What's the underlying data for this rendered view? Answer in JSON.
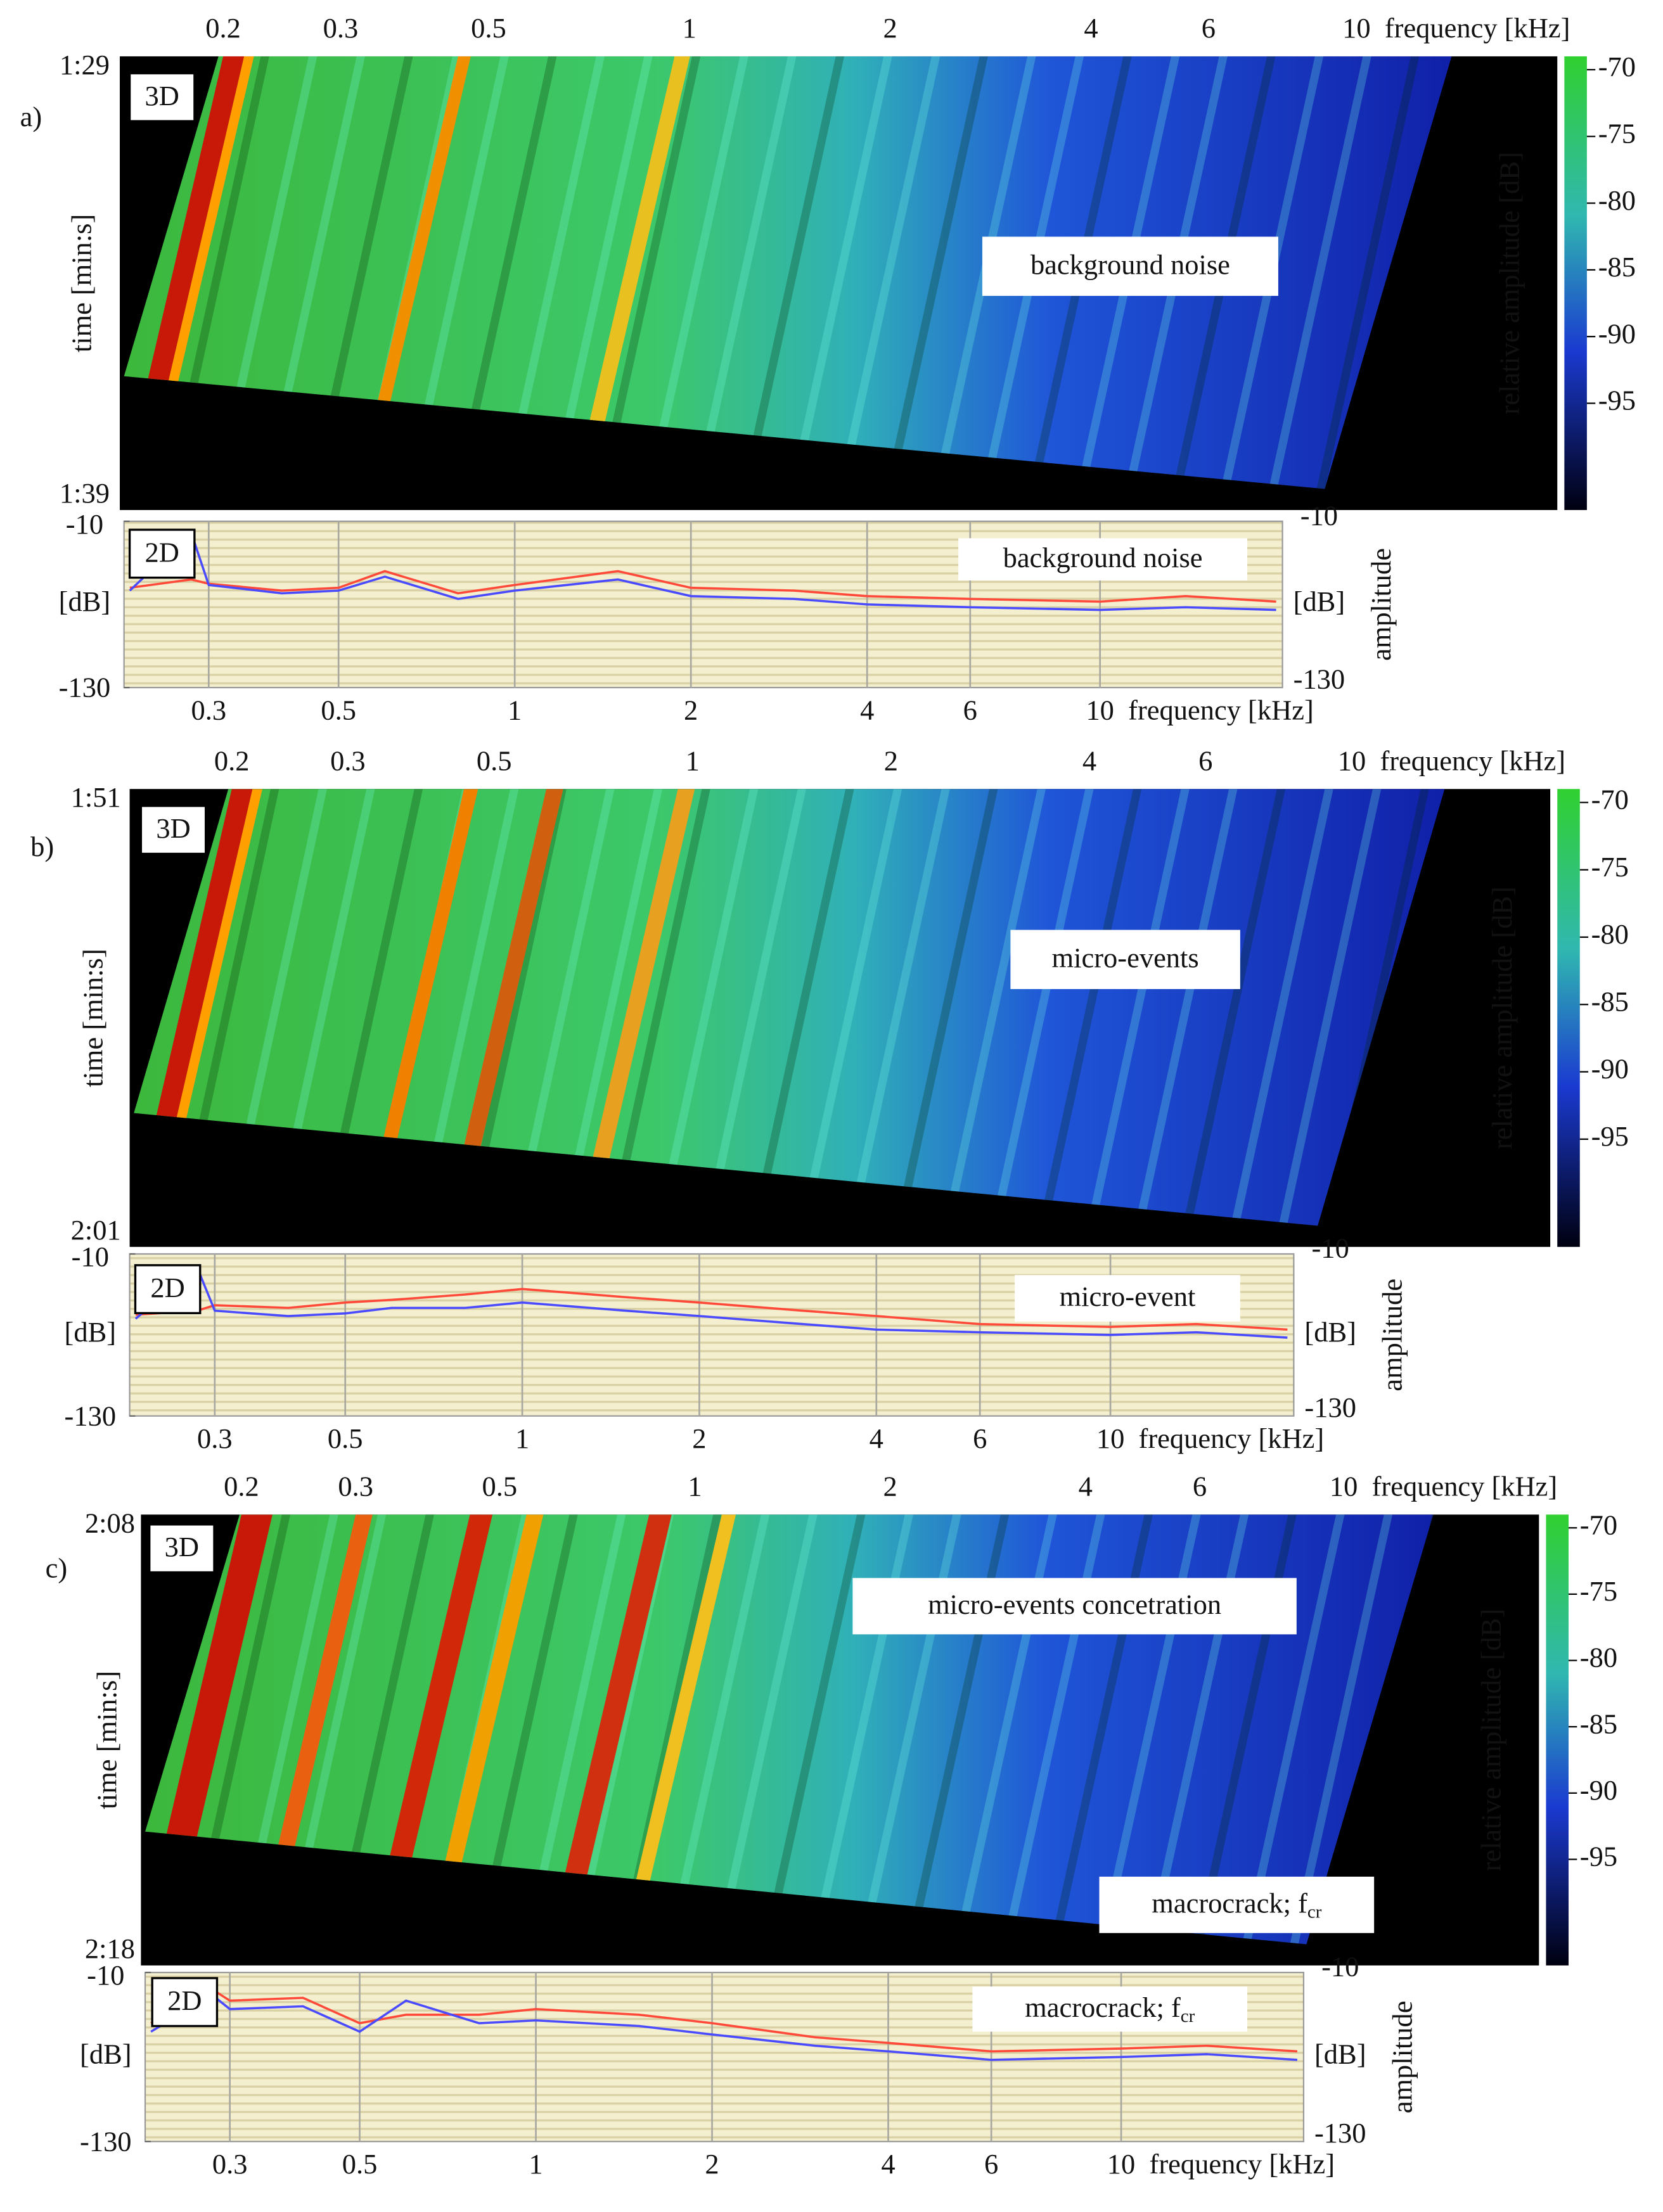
{
  "chart_data": [
    {
      "type": "waterfall",
      "panel_label": "a)",
      "inset_label": "3D",
      "annotations": [
        {
          "text": "background noise"
        }
      ],
      "xlabel": "frequency [kHz]",
      "xlim": [
        0.14,
        20
      ],
      "xticks": [
        0.2,
        0.3,
        0.5,
        1,
        2,
        4,
        6,
        10
      ],
      "ylabel": "time [min:s]",
      "time_labels": [
        "1:29",
        "1:39"
      ],
      "colorbar": {
        "label": "relative amplitude [dB]",
        "clim": [
          -103,
          -69
        ],
        "ticks": [
          -70,
          -75,
          -80,
          -85,
          -90,
          -95
        ]
      }
    },
    {
      "type": "line",
      "inset_label": "2D",
      "annotation": {
        "text": "background noise"
      },
      "xlabel": "frequency [kHz]",
      "xlim": [
        0.215,
        20.5
      ],
      "xticks": [
        0.3,
        0.5,
        1,
        2,
        4,
        6,
        10
      ],
      "ylim": [
        -130,
        -10
      ],
      "yticks": [
        -130,
        -10
      ],
      "yunit": "[dB]",
      "y2label": "amplitude",
      "grid": true,
      "x": [
        0.22,
        0.28,
        0.3,
        0.4,
        0.5,
        0.6,
        0.8,
        1,
        1.5,
        2,
        3,
        4,
        6,
        10,
        14,
        20
      ],
      "series": [
        {
          "color": "#ff4a3a",
          "values": [
            -58,
            -52,
            -55,
            -60,
            -58,
            -46,
            -62,
            -56,
            -46,
            -58,
            -60,
            -64,
            -66,
            -68,
            -64,
            -68
          ]
        },
        {
          "color": "#4a4aff",
          "values": [
            -60,
            -18,
            -56,
            -62,
            -60,
            -50,
            -66,
            -60,
            -52,
            -64,
            -66,
            -70,
            -72,
            -74,
            -72,
            -74
          ]
        }
      ]
    },
    {
      "type": "waterfall",
      "panel_label": "b)",
      "inset_label": "3D",
      "annotations": [
        {
          "text": "micro-events"
        }
      ],
      "xlabel": "frequency [kHz]",
      "xlim": [
        0.14,
        20
      ],
      "xticks": [
        0.2,
        0.3,
        0.5,
        1,
        2,
        4,
        6,
        10
      ],
      "ylabel": "time [min:s]",
      "time_labels": [
        "1:51",
        "2:01"
      ],
      "colorbar": {
        "label": "relative amplitude [dB]",
        "clim": [
          -103,
          -69
        ],
        "ticks": [
          -70,
          -75,
          -80,
          -85,
          -90,
          -95
        ]
      }
    },
    {
      "type": "line",
      "inset_label": "2D",
      "annotation": {
        "text": "micro-event"
      },
      "xlabel": "frequency [kHz]",
      "xlim": [
        0.215,
        20.5
      ],
      "xticks": [
        0.3,
        0.5,
        1,
        2,
        4,
        6,
        10
      ],
      "ylim": [
        -130,
        -10
      ],
      "yticks": [
        -130,
        -10
      ],
      "yunit": "[dB]",
      "y2label": "amplitude",
      "grid": true,
      "x": [
        0.22,
        0.28,
        0.3,
        0.4,
        0.5,
        0.6,
        0.8,
        1,
        1.5,
        2,
        3,
        4,
        6,
        10,
        14,
        20
      ],
      "series": [
        {
          "color": "#ff4a3a",
          "values": [
            -55,
            -52,
            -48,
            -50,
            -46,
            -44,
            -40,
            -36,
            -42,
            -46,
            -52,
            -56,
            -62,
            -64,
            -62,
            -66
          ]
        },
        {
          "color": "#4a4aff",
          "values": [
            -58,
            -20,
            -52,
            -56,
            -54,
            -50,
            -50,
            -46,
            -52,
            -56,
            -62,
            -66,
            -68,
            -70,
            -68,
            -72
          ]
        }
      ]
    },
    {
      "type": "waterfall",
      "panel_label": "c)",
      "inset_label": "3D",
      "annotations": [
        {
          "text": "micro-events concetration"
        },
        {
          "text": "macrocrack; f",
          "subscript": "cr"
        }
      ],
      "xlabel": "frequency [kHz]",
      "xlim": [
        0.14,
        20
      ],
      "xticks": [
        0.2,
        0.3,
        0.5,
        1,
        2,
        4,
        6,
        10
      ],
      "ylabel": "time [min:s]",
      "time_labels": [
        "2:08",
        "2:18"
      ],
      "colorbar": {
        "label": "relative amplitude [dB]",
        "clim": [
          -103,
          -69
        ],
        "ticks": [
          -70,
          -75,
          -80,
          -85,
          -90,
          -95
        ]
      }
    },
    {
      "type": "line",
      "inset_label": "2D",
      "annotation": {
        "text": "macrocrack; f",
        "subscript": "cr"
      },
      "xlabel": "frequency [kHz]",
      "xlim": [
        0.215,
        20.5
      ],
      "xticks": [
        0.3,
        0.5,
        1,
        2,
        4,
        6,
        10
      ],
      "ylim": [
        -130,
        -10
      ],
      "yticks": [
        -130,
        -10
      ],
      "yunit": "[dB]",
      "y2label": "amplitude",
      "grid": true,
      "x": [
        0.22,
        0.28,
        0.3,
        0.4,
        0.5,
        0.6,
        0.8,
        1,
        1.5,
        2,
        3,
        4,
        6,
        10,
        14,
        20
      ],
      "series": [
        {
          "color": "#ff4a3a",
          "values": [
            -46,
            -22,
            -30,
            -28,
            -46,
            -40,
            -40,
            -36,
            -40,
            -46,
            -56,
            -60,
            -66,
            -64,
            -62,
            -66
          ]
        },
        {
          "color": "#4a4aff",
          "values": [
            -52,
            -26,
            -36,
            -34,
            -52,
            -30,
            -46,
            -44,
            -48,
            -54,
            -62,
            -66,
            -72,
            -70,
            -68,
            -72
          ]
        }
      ]
    }
  ]
}
